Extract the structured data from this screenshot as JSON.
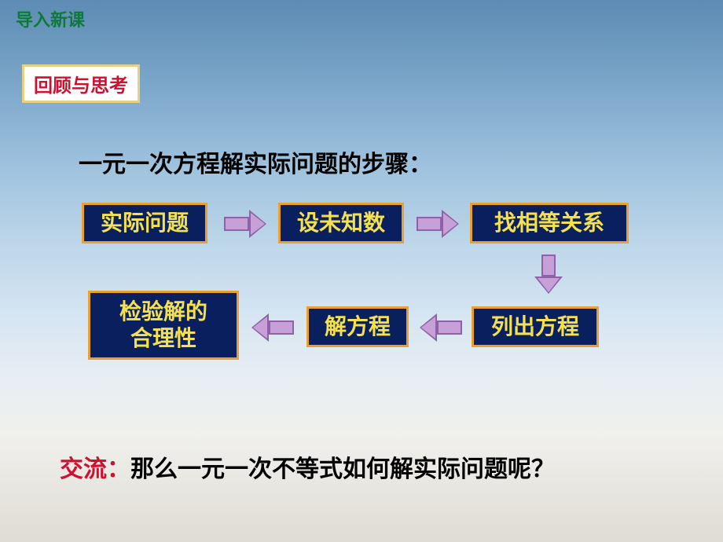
{
  "header": {
    "title": "导入新课"
  },
  "review_box": {
    "label": "回顾与思考",
    "bg_color": "#ffffff",
    "border_color": "#e8d080",
    "text_color": "#d01030"
  },
  "main_title": "一元一次方程解实际问题的步骤：",
  "flowchart": {
    "type": "flowchart",
    "nodes": [
      {
        "id": "box1",
        "label": "实际问题"
      },
      {
        "id": "box2",
        "label": "设未知数"
      },
      {
        "id": "box3",
        "label": "找相等关系"
      },
      {
        "id": "box4",
        "label": "列出方程"
      },
      {
        "id": "box5",
        "label": "解方程"
      },
      {
        "id": "box6",
        "label": "检验解的\n合理性"
      }
    ],
    "edges": [
      {
        "from": "box1",
        "to": "box2",
        "direction": "right"
      },
      {
        "from": "box2",
        "to": "box3",
        "direction": "right"
      },
      {
        "from": "box3",
        "to": "box4",
        "direction": "down"
      },
      {
        "from": "box4",
        "to": "box5",
        "direction": "left"
      },
      {
        "from": "box5",
        "to": "box6",
        "direction": "left"
      }
    ],
    "node_style": {
      "bg_color": "#0a1f5e",
      "border_color": "#e8a030",
      "text_color": "#f5e050",
      "font_size": 28,
      "font_weight": "bold"
    },
    "arrow_style": {
      "fill_color": "#c8a0d8",
      "border_color": "#9060a8"
    }
  },
  "footer": {
    "label": "交流：",
    "content": "那么一元一次不等式如何解实际问题呢？",
    "label_color": "#d01030",
    "content_color": "#000000"
  },
  "background": {
    "type": "gradient",
    "colors": [
      "#5d8bb3",
      "#7aa5c9",
      "#9dc1dd",
      "#bdd6e9",
      "#d5e5f2",
      "#e8eef3",
      "#f0f0ed",
      "#e8e6e0",
      "#dfdcd5"
    ]
  }
}
